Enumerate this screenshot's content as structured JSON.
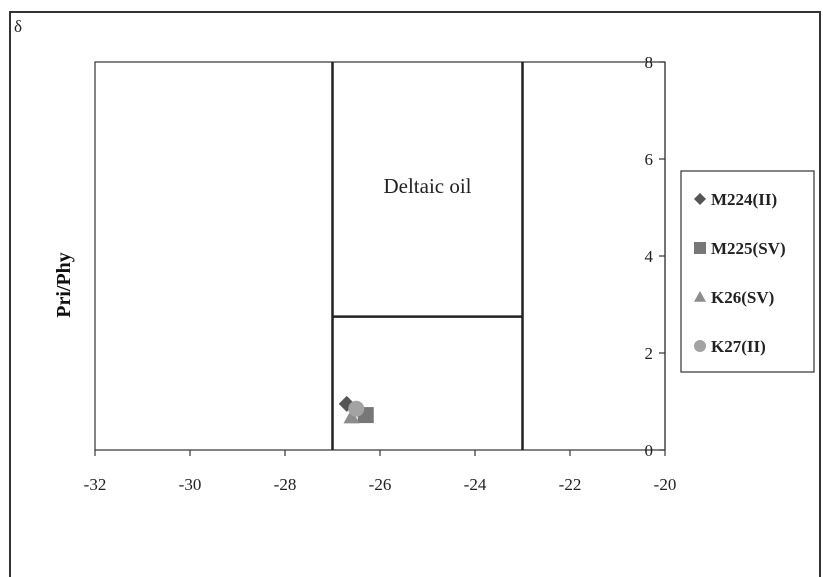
{
  "chart_data": {
    "type": "scatter",
    "title": "",
    "corner_symbol": "δ",
    "xlabel": "",
    "ylabel": "Pri/Phy",
    "xlim": [
      -32,
      -20
    ],
    "ylim": [
      0,
      8
    ],
    "x_ticks": [
      "-32",
      "-30",
      "-28",
      "-26",
      "-24",
      "-22",
      "-20"
    ],
    "y_ticks": [
      "0",
      "2",
      "4",
      "6",
      "8"
    ],
    "grid": false,
    "legend_position": "right",
    "region_boundaries": {
      "vertical_lines_x": [
        -27,
        -23
      ],
      "horizontal_line": {
        "y": 2.75,
        "x_from": -27,
        "x_to": -23
      }
    },
    "annotations": [
      {
        "text": "Deltaic oil",
        "x": -25,
        "y": 5.3
      }
    ],
    "series": [
      {
        "name": "M224(II)",
        "marker": "diamond",
        "color": "#555555",
        "points": [
          {
            "x": -26.7,
            "y": 0.95
          }
        ]
      },
      {
        "name": "M225(SV)",
        "marker": "square",
        "color": "#777777",
        "points": [
          {
            "x": -26.3,
            "y": 0.72
          }
        ]
      },
      {
        "name": "K26(SV)",
        "marker": "triangle",
        "color": "#8c8c8c",
        "points": [
          {
            "x": -26.6,
            "y": 0.68
          }
        ]
      },
      {
        "name": "K27(II)",
        "marker": "circle",
        "color": "#a3a3a3",
        "points": [
          {
            "x": -26.5,
            "y": 0.85
          }
        ]
      }
    ]
  }
}
